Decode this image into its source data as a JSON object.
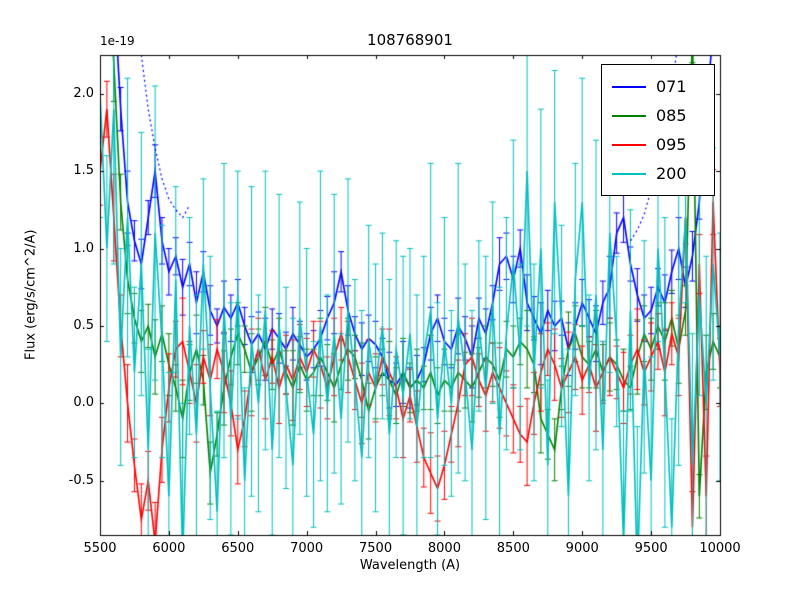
{
  "figure": {
    "title": "108768901",
    "offset_label": "1e-19",
    "xlabel": "Wavelength (A)",
    "ylabel": "Flux (erg/s/cm^2/A)"
  },
  "chart_data": {
    "type": "line",
    "title": "108768901",
    "xlabel": "Wavelength (A)",
    "ylabel": "Flux (erg/s/cm^2/A)",
    "y_scale_label": "1e-19",
    "xlim": [
      5500,
      10000
    ],
    "ylim": [
      -0.85,
      2.25
    ],
    "x_ticks": [
      5500,
      6000,
      6500,
      7000,
      7500,
      8000,
      8500,
      9000,
      9500,
      10000
    ],
    "y_ticks": [
      -0.5,
      0.0,
      0.5,
      1.0,
      1.5,
      2.0
    ],
    "grid": false,
    "legend_position": "upper right",
    "error_bars": true,
    "x_start": 5500,
    "x_step": 50,
    "n_points": 91,
    "series": [
      {
        "name": "071",
        "color": "#0000ff",
        "values": [
          2.8,
          2.5,
          2.7,
          1.9,
          1.3,
          1.05,
          0.9,
          1.2,
          1.5,
          1.05,
          0.85,
          0.95,
          0.75,
          0.9,
          0.65,
          0.85,
          0.6,
          0.5,
          0.62,
          0.55,
          0.65,
          0.5,
          0.38,
          0.45,
          0.35,
          0.48,
          0.42,
          0.35,
          0.45,
          0.38,
          0.3,
          0.35,
          0.42,
          0.55,
          0.65,
          0.85,
          0.6,
          0.45,
          0.35,
          0.42,
          0.38,
          0.3,
          0.15,
          0.12,
          0.2,
          0.1,
          0.15,
          0.25,
          0.45,
          0.55,
          0.4,
          0.35,
          0.5,
          0.42,
          0.3,
          0.55,
          0.45,
          0.65,
          0.9,
          0.95,
          0.8,
          1.0,
          0.65,
          0.55,
          0.45,
          0.6,
          0.5,
          0.55,
          0.35,
          0.5,
          0.65,
          0.55,
          0.45,
          0.65,
          0.75,
          1.1,
          1.2,
          0.9,
          0.7,
          0.55,
          0.6,
          0.75,
          0.65,
          0.85,
          1.0,
          0.75,
          0.95,
          1.3,
          1.9,
          2.4,
          2.7
        ],
        "errors": [
          0.15,
          0.12,
          0.18,
          0.14,
          0.2,
          0.13,
          0.16,
          0.11,
          0.17,
          0.15,
          0.15,
          0.12,
          0.18,
          0.14,
          0.2,
          0.13,
          0.16,
          0.11,
          0.17,
          0.15,
          0.15,
          0.12,
          0.18,
          0.14,
          0.2,
          0.13,
          0.16,
          0.11,
          0.17,
          0.15,
          0.15,
          0.12,
          0.18,
          0.14,
          0.2,
          0.13,
          0.16,
          0.11,
          0.17,
          0.15,
          0.15,
          0.12,
          0.18,
          0.14,
          0.2,
          0.13,
          0.16,
          0.11,
          0.17,
          0.15,
          0.15,
          0.12,
          0.18,
          0.14,
          0.2,
          0.13,
          0.16,
          0.11,
          0.17,
          0.15,
          0.15,
          0.12,
          0.18,
          0.14,
          0.2,
          0.13,
          0.16,
          0.11,
          0.17,
          0.15,
          0.15,
          0.12,
          0.18,
          0.14,
          0.2,
          0.13,
          0.16,
          0.11,
          0.17,
          0.15,
          0.15,
          0.12,
          0.18,
          0.14,
          0.2,
          0.13,
          0.16,
          0.11,
          0.17,
          0.15,
          0.15
        ]
      },
      {
        "name": "085",
        "color": "#008000",
        "values": [
          2.7,
          2.9,
          2.2,
          1.3,
          0.8,
          0.55,
          0.4,
          0.5,
          0.3,
          0.45,
          0.25,
          0.1,
          -0.1,
          0.2,
          0.35,
          0.15,
          -0.45,
          -0.2,
          0.1,
          0.3,
          0.45,
          0.35,
          0.2,
          0.3,
          0.4,
          0.25,
          0.35,
          0.2,
          0.1,
          0.25,
          0.15,
          0.2,
          0.3,
          0.2,
          0.1,
          0.25,
          0.35,
          0.3,
          0.15,
          -0.05,
          0.1,
          0.2,
          0.15,
          0.05,
          0.2,
          0.1,
          0.15,
          0.1,
          0.2,
          0.05,
          0.15,
          0.1,
          0.2,
          0.15,
          0.1,
          0.2,
          0.3,
          0.25,
          0.15,
          0.35,
          0.3,
          0.4,
          0.35,
          0.25,
          -0.1,
          -0.2,
          -0.3,
          0.1,
          0.35,
          0.45,
          0.3,
          0.25,
          0.35,
          0.2,
          0.3,
          0.25,
          0.15,
          0.1,
          0.3,
          0.45,
          0.35,
          0.5,
          0.4,
          0.55,
          0.35,
          0.6,
          2.4,
          -0.6,
          0.2,
          0.4,
          0.3
        ],
        "errors": [
          0.2,
          0.15,
          0.25,
          0.18,
          0.22,
          0.16,
          0.2,
          0.14,
          0.24,
          0.18,
          0.2,
          0.15,
          0.25,
          0.18,
          0.22,
          0.16,
          0.2,
          0.14,
          0.24,
          0.18,
          0.2,
          0.15,
          0.25,
          0.18,
          0.22,
          0.16,
          0.2,
          0.14,
          0.24,
          0.18,
          0.2,
          0.15,
          0.25,
          0.18,
          0.22,
          0.16,
          0.2,
          0.14,
          0.24,
          0.18,
          0.2,
          0.15,
          0.25,
          0.18,
          0.22,
          0.16,
          0.2,
          0.14,
          0.24,
          0.18,
          0.2,
          0.15,
          0.25,
          0.18,
          0.22,
          0.16,
          0.2,
          0.14,
          0.24,
          0.18,
          0.2,
          0.15,
          0.25,
          0.18,
          0.22,
          0.16,
          0.2,
          0.14,
          0.24,
          0.18,
          0.2,
          0.15,
          0.25,
          0.18,
          0.22,
          0.16,
          0.2,
          0.14,
          0.24,
          0.18,
          0.2,
          0.15,
          0.25,
          0.18,
          0.22,
          0.16,
          0.2,
          0.14,
          0.24,
          0.18,
          0.2
        ]
      },
      {
        "name": "095",
        "color": "#ff0000",
        "values": [
          1.5,
          1.9,
          1.2,
          0.5,
          0.0,
          -0.4,
          -0.75,
          -0.5,
          -0.9,
          -0.3,
          0.1,
          0.35,
          0.4,
          0.2,
          0.0,
          0.3,
          0.15,
          0.35,
          0.2,
          0.0,
          -0.3,
          -0.1,
          0.2,
          0.35,
          0.15,
          0.3,
          0.1,
          0.25,
          0.15,
          0.3,
          0.2,
          0.35,
          0.25,
          0.1,
          0.3,
          0.45,
          0.3,
          0.15,
          0.0,
          0.2,
          0.1,
          0.3,
          0.2,
          0.1,
          -0.1,
          0.05,
          -0.15,
          -0.35,
          -0.45,
          -0.55,
          -0.4,
          -0.2,
          0.0,
          0.25,
          0.3,
          0.15,
          0.05,
          0.2,
          0.1,
          0.0,
          -0.1,
          -0.2,
          -0.25,
          0.0,
          0.2,
          0.35,
          0.25,
          0.1,
          0.2,
          0.3,
          0.15,
          0.25,
          0.1,
          0.2,
          0.3,
          0.2,
          0.1,
          0.25,
          0.35,
          0.2,
          0.3,
          0.4,
          0.2,
          0.45,
          0.3,
          1.2,
          -0.8,
          0.9,
          -0.6,
          1.3,
          0.2
        ],
        "errors": [
          0.22,
          0.18,
          0.28,
          0.2,
          0.25,
          0.17,
          0.23,
          0.19,
          0.26,
          0.21,
          0.22,
          0.18,
          0.28,
          0.2,
          0.25,
          0.17,
          0.23,
          0.19,
          0.26,
          0.21,
          0.22,
          0.18,
          0.28,
          0.2,
          0.25,
          0.17,
          0.23,
          0.19,
          0.26,
          0.21,
          0.22,
          0.18,
          0.28,
          0.2,
          0.25,
          0.17,
          0.23,
          0.19,
          0.26,
          0.21,
          0.22,
          0.18,
          0.28,
          0.2,
          0.25,
          0.17,
          0.23,
          0.19,
          0.26,
          0.21,
          0.22,
          0.18,
          0.28,
          0.2,
          0.25,
          0.17,
          0.23,
          0.19,
          0.26,
          0.21,
          0.22,
          0.18,
          0.28,
          0.2,
          0.25,
          0.17,
          0.23,
          0.19,
          0.26,
          0.21,
          0.22,
          0.18,
          0.28,
          0.2,
          0.25,
          0.17,
          0.23,
          0.19,
          0.26,
          0.21,
          0.22,
          0.18,
          0.28,
          0.2,
          0.25,
          0.17,
          0.23,
          0.19,
          0.26,
          0.21,
          0.22
        ]
      },
      {
        "name": "200",
        "color": "#00bfbf",
        "values": [
          2.0,
          1.0,
          1.9,
          0.3,
          1.2,
          0.2,
          0.9,
          -0.3,
          1.1,
          0.4,
          -0.6,
          0.8,
          -1.0,
          0.5,
          -0.2,
          0.9,
          0.1,
          -0.7,
          0.6,
          -0.1,
          0.7,
          -0.5,
          0.4,
          0.0,
          0.6,
          -0.3,
          0.5,
          0.1,
          -0.4,
          0.55,
          0.2,
          -0.2,
          0.5,
          0.0,
          0.45,
          -0.1,
          0.6,
          0.15,
          -0.35,
          0.4,
          0.1,
          0.5,
          -0.2,
          0.35,
          0.05,
          0.45,
          -0.15,
          0.3,
          0.6,
          -0.1,
          0.4,
          0.0,
          0.55,
          0.2,
          -0.3,
          0.5,
          0.1,
          0.65,
          -0.2,
          0.45,
          0.9,
          0.3,
          1.5,
          0.2,
          1.0,
          -0.4,
          1.3,
          0.5,
          -0.6,
          0.8,
          1.3,
          0.1,
          0.7,
          -0.3,
          1.1,
          0.4,
          -0.9,
          0.6,
          -1.1,
          0.3,
          -0.5,
          1.0,
          0.2,
          -0.8,
          0.5,
          1.2,
          -0.4,
          0.7,
          0.0,
          0.9,
          0.3
        ],
        "errors": [
          0.8,
          0.6,
          1.0,
          0.7,
          0.9,
          0.55,
          0.85,
          0.65,
          0.95,
          0.75,
          0.8,
          0.6,
          1.0,
          0.7,
          0.9,
          0.55,
          0.85,
          0.65,
          0.95,
          0.75,
          0.8,
          0.6,
          1.0,
          0.7,
          0.9,
          0.55,
          0.85,
          0.65,
          0.95,
          0.75,
          0.8,
          0.6,
          1.0,
          0.7,
          0.9,
          0.55,
          0.85,
          0.65,
          0.95,
          0.75,
          0.8,
          0.6,
          1.0,
          0.7,
          0.9,
          0.55,
          0.85,
          0.65,
          0.95,
          0.75,
          0.8,
          0.6,
          1.0,
          0.7,
          0.9,
          0.55,
          0.85,
          0.65,
          0.95,
          0.75,
          0.8,
          0.6,
          1.0,
          0.7,
          0.9,
          0.55,
          0.85,
          0.65,
          0.95,
          0.75,
          0.8,
          0.6,
          1.0,
          0.7,
          0.9,
          0.55,
          0.85,
          0.65,
          0.95,
          0.75,
          0.8,
          0.6,
          1.0,
          0.7,
          0.9,
          0.55,
          0.85,
          0.65,
          0.95,
          0.75,
          0.8
        ]
      }
    ],
    "overlay_series": {
      "name": "071-dotted",
      "color": "#0000ff",
      "style": "dotted",
      "values": [
        null,
        null,
        null,
        null,
        null,
        2.7,
        2.25,
        1.9,
        1.65,
        1.45,
        1.32,
        1.25,
        1.2,
        1.28,
        null,
        null,
        null,
        null,
        null,
        null,
        null,
        null,
        null,
        null,
        null,
        null,
        null,
        null,
        null,
        null,
        null,
        null,
        null,
        null,
        null,
        null,
        null,
        null,
        null,
        null,
        null,
        null,
        null,
        null,
        null,
        null,
        null,
        null,
        null,
        null,
        null,
        null,
        null,
        null,
        null,
        null,
        null,
        null,
        null,
        null,
        null,
        null,
        null,
        null,
        null,
        null,
        null,
        null,
        null,
        null,
        null,
        null,
        null,
        null,
        null,
        null,
        null,
        1.05,
        1.12,
        1.22,
        1.38,
        1.55,
        1.78,
        2.05,
        2.35,
        2.7,
        null,
        null,
        null,
        null,
        null
      ]
    }
  }
}
